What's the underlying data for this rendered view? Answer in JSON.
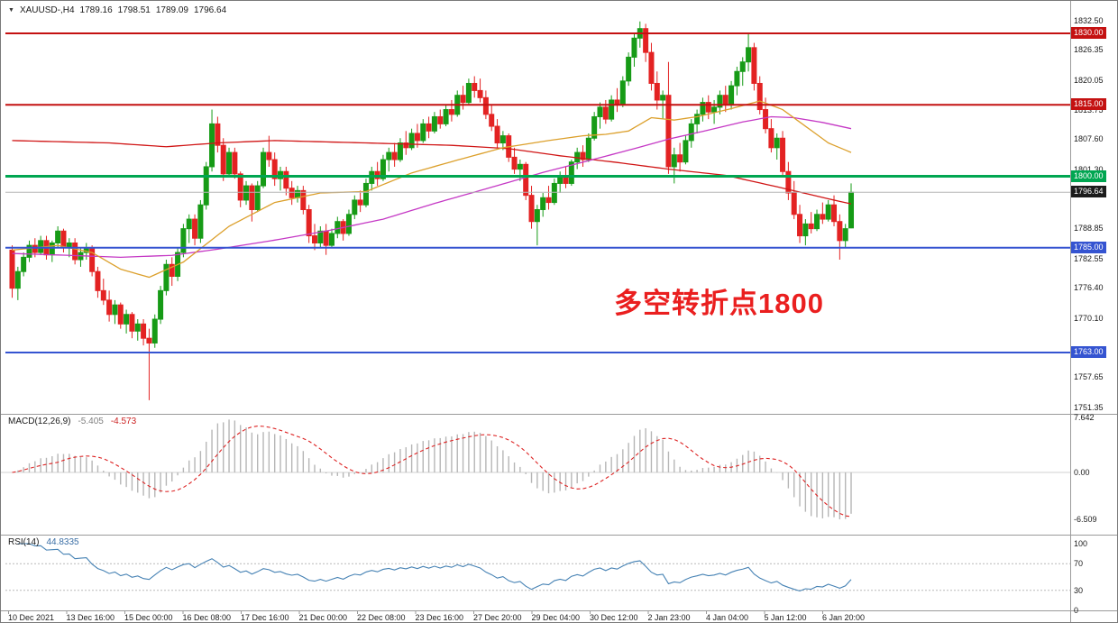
{
  "window": {
    "collapse_icon": "▼",
    "symbol_tf": "XAUUSD-,H4",
    "open": "1789.16",
    "high": "1798.51",
    "low": "1789.09",
    "close": "1796.64"
  },
  "annotation": {
    "text": "多空转折点1800",
    "color": "#ea1f1f"
  },
  "indicators": {
    "macd": {
      "label": "MACD(12,26,9)",
      "main_value": "-5.405",
      "signal_value": "-4.573",
      "axis": [
        "7.642",
        "0.00",
        "-6.509"
      ],
      "ylim": [
        -6.509,
        7.642
      ],
      "params": {
        "fast": 12,
        "slow": 26,
        "signal": 9
      }
    },
    "rsi": {
      "label": "RSI(14)",
      "value": "44.8335",
      "axis": [
        "100",
        "70",
        "30",
        "0"
      ],
      "levels": [
        70,
        30
      ],
      "period": 14
    }
  },
  "colors": {
    "bull": "#169b16",
    "bear": "#e32222",
    "level_red": "#c41111",
    "level_green": "#00a651",
    "level_blue": "#3554d1",
    "last_price_line": "#b5b5b5",
    "last_price_badge": "#1c1c1c",
    "ma_red": "#d01515",
    "ma_orange": "#dca02c",
    "ma_magenta": "#c539c5",
    "macd_hist": "#b6b6b6",
    "macd_signal": "#dd2222",
    "rsi_line": "#4682b4",
    "separator": "#9a9a9a",
    "axis_text": "#1a1a1a"
  },
  "chart_data": {
    "type": "candlestick",
    "symbol": "XAUUSD-",
    "timeframe": "H4",
    "ylim": [
      1751.35,
      1832.5
    ],
    "y_ticks": [
      "1832.50",
      "1826.35",
      "1820.05",
      "1813.75",
      "1807.60",
      "1801.30",
      "1788.85",
      "1782.55",
      "1776.40",
      "1770.10",
      "1757.65",
      "1751.35"
    ],
    "x_labels": [
      "10 Dec 2021",
      "13 Dec 16:00",
      "15 Dec 00:00",
      "16 Dec 08:00",
      "17 Dec 16:00",
      "21 Dec 00:00",
      "22 Dec 08:00",
      "23 Dec 16:00",
      "27 Dec 20:00",
      "29 Dec 04:00",
      "30 Dec 12:00",
      "2 Jan 23:00",
      "4 Jan 04:00",
      "5 Jan 12:00",
      "6 Jan 20:00"
    ],
    "levels": [
      {
        "price": 1830.0,
        "label": "1830.00",
        "color": "#c41111",
        "width": 2
      },
      {
        "price": 1815.0,
        "label": "1815.00",
        "color": "#c41111",
        "width": 2
      },
      {
        "price": 1800.0,
        "label": "1800.00",
        "color": "#00a651",
        "width": 3
      },
      {
        "price": 1785.0,
        "label": "1785.00",
        "color": "#3554d1",
        "width": 2
      },
      {
        "price": 1763.0,
        "label": "1763.00",
        "color": "#3554d1",
        "width": 2
      }
    ],
    "current_price": {
      "price": 1796.64,
      "label": "1796.64"
    },
    "candles": [
      [
        1784.5,
        1785.5,
        1774.5,
        1776.5
      ],
      [
        1776.5,
        1781,
        1774,
        1780
      ],
      [
        1780,
        1784,
        1779,
        1783
      ],
      [
        1783,
        1786.5,
        1782,
        1785.5
      ],
      [
        1785.5,
        1787,
        1783,
        1784
      ],
      [
        1784,
        1787.5,
        1783.5,
        1786.5
      ],
      [
        1786.5,
        1787.5,
        1782.5,
        1783.5
      ],
      [
        1783.5,
        1786.5,
        1782,
        1786
      ],
      [
        1786,
        1789.5,
        1785,
        1788.5
      ],
      [
        1788.5,
        1789,
        1784,
        1785
      ],
      [
        1785,
        1787,
        1783,
        1786
      ],
      [
        1786,
        1787,
        1781.5,
        1782.5
      ],
      [
        1782.5,
        1785,
        1781,
        1784
      ],
      [
        1784,
        1786,
        1782.5,
        1785
      ],
      [
        1785,
        1785.5,
        1779,
        1780
      ],
      [
        1780,
        1781,
        1774.5,
        1776
      ],
      [
        1776,
        1778.5,
        1773,
        1774
      ],
      [
        1774,
        1776,
        1769.5,
        1771
      ],
      [
        1771,
        1774,
        1769,
        1773
      ],
      [
        1773,
        1773.5,
        1768,
        1769
      ],
      [
        1769,
        1772,
        1767,
        1771
      ],
      [
        1771,
        1771.5,
        1766,
        1767.5
      ],
      [
        1767.5,
        1770,
        1765.5,
        1769
      ],
      [
        1769,
        1770,
        1764.5,
        1766
      ],
      [
        1766,
        1768,
        1753,
        1765
      ],
      [
        1765,
        1771,
        1764,
        1770
      ],
      [
        1770,
        1777,
        1769,
        1776
      ],
      [
        1776,
        1782.5,
        1775,
        1781.5
      ],
      [
        1781.5,
        1783,
        1777,
        1779
      ],
      [
        1779,
        1785,
        1778,
        1784
      ],
      [
        1784,
        1790,
        1783,
        1789
      ],
      [
        1789,
        1792,
        1786,
        1791
      ],
      [
        1791,
        1792,
        1785.5,
        1787
      ],
      [
        1787,
        1795,
        1786,
        1794
      ],
      [
        1794,
        1803,
        1793,
        1802
      ],
      [
        1802,
        1814,
        1801,
        1811
      ],
      [
        1811,
        1812.5,
        1805,
        1806.5
      ],
      [
        1806.5,
        1808,
        1799,
        1800.5
      ],
      [
        1800.5,
        1806,
        1800,
        1805
      ],
      [
        1805,
        1806,
        1799.5,
        1800.5
      ],
      [
        1800.5,
        1801,
        1793.5,
        1795
      ],
      [
        1795,
        1799,
        1794,
        1798
      ],
      [
        1798,
        1798.5,
        1790.5,
        1793
      ],
      [
        1793,
        1799,
        1792.5,
        1798
      ],
      [
        1798,
        1806,
        1797.5,
        1805
      ],
      [
        1805,
        1808.5,
        1802,
        1803.5
      ],
      [
        1803.5,
        1805,
        1798,
        1799.5
      ],
      [
        1799.5,
        1802,
        1797,
        1801
      ],
      [
        1801,
        1802,
        1796,
        1797.5
      ],
      [
        1797.5,
        1799,
        1794,
        1795.5
      ],
      [
        1795.5,
        1798,
        1794.5,
        1797
      ],
      [
        1797,
        1798,
        1792,
        1793
      ],
      [
        1793,
        1794,
        1786,
        1787.5
      ],
      [
        1787.5,
        1790,
        1784.5,
        1786
      ],
      [
        1786,
        1789.5,
        1785,
        1788.5
      ],
      [
        1788.5,
        1790,
        1783.5,
        1785.5
      ],
      [
        1785.5,
        1789,
        1785,
        1788
      ],
      [
        1788,
        1791.5,
        1787,
        1790.5
      ],
      [
        1790.5,
        1791,
        1786.5,
        1788
      ],
      [
        1788,
        1793,
        1787.5,
        1792
      ],
      [
        1792,
        1796,
        1791,
        1795
      ],
      [
        1795,
        1797,
        1792.5,
        1794
      ],
      [
        1794,
        1799.5,
        1793.5,
        1798.5
      ],
      [
        1798.5,
        1802,
        1797,
        1801
      ],
      [
        1801,
        1803,
        1798,
        1799.5
      ],
      [
        1799.5,
        1804.5,
        1799,
        1803.5
      ],
      [
        1803.5,
        1806,
        1801,
        1805
      ],
      [
        1805,
        1807,
        1802,
        1803.5
      ],
      [
        1803.5,
        1808,
        1803,
        1807
      ],
      [
        1807,
        1809.5,
        1804.5,
        1806
      ],
      [
        1806,
        1810,
        1805.5,
        1809
      ],
      [
        1809,
        1811,
        1806,
        1807.5
      ],
      [
        1807.5,
        1812,
        1807,
        1811
      ],
      [
        1811,
        1812.5,
        1808,
        1809.5
      ],
      [
        1809.5,
        1813.5,
        1809,
        1812.5
      ],
      [
        1812.5,
        1814,
        1810,
        1811
      ],
      [
        1811,
        1815,
        1810.5,
        1814
      ],
      [
        1814,
        1816,
        1811.5,
        1813
      ],
      [
        1813,
        1818,
        1812.5,
        1817
      ],
      [
        1817,
        1819,
        1814,
        1815.5
      ],
      [
        1815.5,
        1820.5,
        1815,
        1819.5
      ],
      [
        1819.5,
        1821,
        1816.5,
        1818
      ],
      [
        1818,
        1820.5,
        1815.5,
        1816.5
      ],
      [
        1816.5,
        1818,
        1812,
        1813
      ],
      [
        1813,
        1815,
        1809.5,
        1810.5
      ],
      [
        1810.5,
        1812,
        1806,
        1807
      ],
      [
        1807,
        1809.5,
        1805.5,
        1808.5
      ],
      [
        1808.5,
        1809,
        1803,
        1804
      ],
      [
        1804,
        1806,
        1800.5,
        1801.5
      ],
      [
        1801.5,
        1803.5,
        1799,
        1802.5
      ],
      [
        1802.5,
        1803,
        1795,
        1796
      ],
      [
        1796,
        1798,
        1789,
        1790.5
      ],
      [
        1790.5,
        1794,
        1785.5,
        1793
      ],
      [
        1793,
        1796.5,
        1791.5,
        1795.5
      ],
      [
        1795.5,
        1798,
        1793,
        1794.5
      ],
      [
        1794.5,
        1799.5,
        1794,
        1798.5
      ],
      [
        1798.5,
        1801,
        1796.5,
        1800
      ],
      [
        1800,
        1802,
        1797.5,
        1798.5
      ],
      [
        1798.5,
        1803.5,
        1798,
        1803
      ],
      [
        1803,
        1806,
        1801.5,
        1805
      ],
      [
        1805,
        1806.5,
        1802,
        1803.5
      ],
      [
        1803.5,
        1809,
        1803,
        1808
      ],
      [
        1808,
        1813.5,
        1807.5,
        1812.5
      ],
      [
        1812.5,
        1815.5,
        1810,
        1814.5
      ],
      [
        1814.5,
        1816,
        1811,
        1812
      ],
      [
        1812,
        1817,
        1811.5,
        1816
      ],
      [
        1816,
        1818.5,
        1813.5,
        1815
      ],
      [
        1815,
        1821,
        1814.5,
        1820
      ],
      [
        1820,
        1826,
        1819,
        1825
      ],
      [
        1825,
        1830,
        1823,
        1829
      ],
      [
        1829,
        1832.5,
        1827,
        1831
      ],
      [
        1831,
        1832,
        1824,
        1826
      ],
      [
        1826,
        1828,
        1818,
        1819.5
      ],
      [
        1819.5,
        1822,
        1814,
        1816
      ],
      [
        1816,
        1818,
        1812,
        1817
      ],
      [
        1817,
        1824,
        1800.5,
        1802
      ],
      [
        1802,
        1806,
        1798.5,
        1804.5
      ],
      [
        1804.5,
        1807,
        1801,
        1803
      ],
      [
        1803,
        1808.5,
        1802.5,
        1807.5
      ],
      [
        1807.5,
        1812,
        1806,
        1811
      ],
      [
        1811,
        1814,
        1809,
        1813
      ],
      [
        1813,
        1816.5,
        1811.5,
        1815.5
      ],
      [
        1815.5,
        1817,
        1812,
        1813.5
      ],
      [
        1813.5,
        1816,
        1811,
        1814.5
      ],
      [
        1814.5,
        1818,
        1813,
        1817
      ],
      [
        1817,
        1819,
        1813.5,
        1815
      ],
      [
        1815,
        1820,
        1814,
        1819
      ],
      [
        1819,
        1823,
        1817,
        1822
      ],
      [
        1822,
        1825,
        1819,
        1824
      ],
      [
        1824,
        1830,
        1822,
        1827
      ],
      [
        1827,
        1828,
        1818,
        1819.5
      ],
      [
        1819.5,
        1821,
        1813,
        1814
      ],
      [
        1814,
        1816.5,
        1809,
        1810
      ],
      [
        1810,
        1812,
        1805,
        1806
      ],
      [
        1806,
        1809,
        1803.5,
        1808
      ],
      [
        1808,
        1809.5,
        1800,
        1801
      ],
      [
        1801,
        1803,
        1795,
        1796.5
      ],
      [
        1796.5,
        1799,
        1791,
        1792
      ],
      [
        1792,
        1794,
        1786,
        1787.5
      ],
      [
        1787.5,
        1791,
        1785.5,
        1790
      ],
      [
        1790,
        1792.5,
        1788,
        1789
      ],
      [
        1789,
        1793,
        1788.5,
        1792
      ],
      [
        1792,
        1794.5,
        1790,
        1791
      ],
      [
        1791,
        1795,
        1790.5,
        1794
      ],
      [
        1794,
        1796,
        1789.5,
        1790.5
      ],
      [
        1790.5,
        1792,
        1782.5,
        1786.5
      ],
      [
        1786.5,
        1790,
        1785,
        1789
      ],
      [
        1789.16,
        1798.51,
        1789.09,
        1796.64
      ]
    ],
    "moving_averages": [
      {
        "name": "ma-red",
        "color": "#d01515",
        "points": [
          [
            0,
            1807.5
          ],
          [
            17,
            1807
          ],
          [
            27,
            1806.2
          ],
          [
            36,
            1807
          ],
          [
            46,
            1807.5
          ],
          [
            62,
            1807
          ],
          [
            77,
            1806.5
          ],
          [
            87,
            1805.8
          ],
          [
            96,
            1804.3
          ],
          [
            106,
            1802.9
          ],
          [
            115,
            1801.5
          ],
          [
            125,
            1800.2
          ],
          [
            134,
            1797.8
          ],
          [
            144,
            1795
          ],
          [
            147,
            1794.2
          ]
        ]
      },
      {
        "name": "ma-magenta",
        "color": "#c539c5",
        "points": [
          [
            0,
            1783.8
          ],
          [
            10,
            1783.4
          ],
          [
            19,
            1783
          ],
          [
            28,
            1783.4
          ],
          [
            36,
            1784.7
          ],
          [
            46,
            1786.6
          ],
          [
            55,
            1788.5
          ],
          [
            65,
            1791
          ],
          [
            74,
            1794.3
          ],
          [
            84,
            1797.7
          ],
          [
            93,
            1800.8
          ],
          [
            103,
            1803.9
          ],
          [
            109,
            1805.8
          ],
          [
            115,
            1807.8
          ],
          [
            122,
            1809.7
          ],
          [
            128,
            1811.4
          ],
          [
            133,
            1812.5
          ],
          [
            137,
            1812.3
          ],
          [
            142,
            1811.3
          ],
          [
            147,
            1810
          ]
        ]
      },
      {
        "name": "ma-orange",
        "color": "#dca02c",
        "points": [
          [
            0,
            1784.5
          ],
          [
            8,
            1785.5
          ],
          [
            14,
            1784
          ],
          [
            19,
            1780.5
          ],
          [
            24,
            1778.8
          ],
          [
            30,
            1782
          ],
          [
            38,
            1789.5
          ],
          [
            46,
            1794.5
          ],
          [
            54,
            1796.5
          ],
          [
            62,
            1796.8
          ],
          [
            70,
            1800.7
          ],
          [
            78,
            1803.4
          ],
          [
            86,
            1806
          ],
          [
            94,
            1807.5
          ],
          [
            100,
            1808.5
          ],
          [
            104,
            1808.8
          ],
          [
            108,
            1809.5
          ],
          [
            112,
            1812.3
          ],
          [
            116,
            1811.8
          ],
          [
            120,
            1812.5
          ],
          [
            126,
            1814.2
          ],
          [
            131,
            1815.8
          ],
          [
            135,
            1814
          ],
          [
            139,
            1810.5
          ],
          [
            143,
            1807
          ],
          [
            147,
            1805
          ]
        ]
      }
    ]
  }
}
